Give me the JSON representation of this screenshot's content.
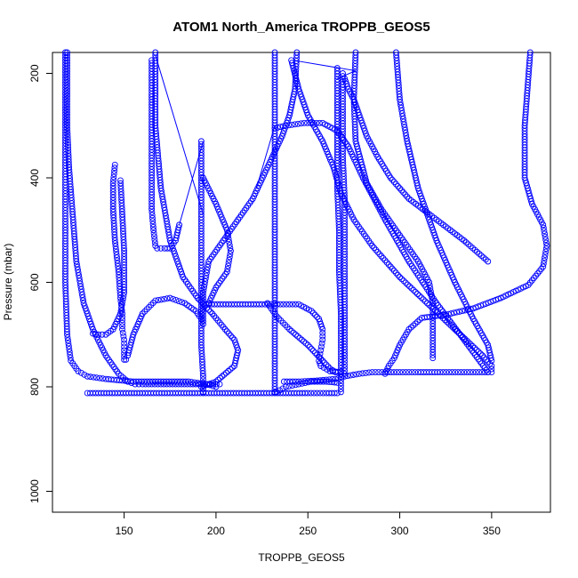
{
  "chart_data": {
    "type": "scatter",
    "title": "ATOM1 North_America TROPPB_GEOS5",
    "xlabel": "TROPPB_GEOS5",
    "ylabel": "Pressure (mbar)",
    "xlim": [
      111,
      382
    ],
    "ylim": [
      1040,
      160
    ],
    "y_reversed": true,
    "x_ticks": [
      150,
      200,
      250,
      300,
      350
    ],
    "y_ticks": [
      200,
      400,
      600,
      800,
      1000
    ],
    "grid": false,
    "legend": "none",
    "marker": "open-circle",
    "color": "#0000ff",
    "series": [
      {
        "x": [
          119,
          119,
          120,
          122,
          124,
          128,
          133,
          140,
          147,
          152,
          156,
          160,
          165,
          170,
          178,
          186,
          195,
          202
        ],
        "y": [
          160,
          300,
          380,
          470,
          560,
          640,
          690,
          740,
          775,
          790,
          795,
          795,
          795,
          795,
          795,
          795,
          795,
          795
        ]
      },
      {
        "x": [
          118,
          118,
          118,
          118,
          118,
          118,
          119,
          121,
          125,
          130,
          140,
          155,
          170,
          185,
          195,
          200
        ],
        "y": [
          160,
          250,
          350,
          430,
          500,
          600,
          700,
          750,
          770,
          780,
          785,
          790,
          790,
          790,
          795,
          800
        ]
      },
      {
        "x": [
          145,
          144,
          144,
          145,
          147,
          148,
          149,
          149,
          150,
          150,
          150
        ],
        "y": [
          375,
          410,
          460,
          520,
          580,
          630,
          660,
          690,
          710,
          730,
          748
        ]
      },
      {
        "x": [
          148,
          149,
          150,
          150,
          148,
          144,
          140,
          136,
          133
        ],
        "y": [
          405,
          470,
          540,
          620,
          660,
          690,
          700,
          700,
          698
        ]
      },
      {
        "x": [
          151,
          152,
          155,
          160,
          167,
          175,
          183,
          189,
          192
        ],
        "y": [
          748,
          740,
          700,
          660,
          635,
          630,
          640,
          655,
          670
        ]
      },
      {
        "x": [
          192,
          192,
          192,
          192,
          192,
          192,
          192,
          193,
          193
        ],
        "y": [
          330,
          400,
          470,
          540,
          600,
          660,
          720,
          780,
          810
        ]
      },
      {
        "x": [
          167,
          167,
          170,
          175,
          182,
          190,
          198,
          205,
          210,
          212,
          210,
          200,
          192
        ],
        "y": [
          160,
          300,
          420,
          520,
          590,
          630,
          660,
          690,
          710,
          730,
          760,
          790,
          800
        ]
      },
      {
        "x": [
          165,
          165,
          165,
          165,
          165,
          166,
          167,
          168,
          170,
          172,
          175,
          178,
          180
        ],
        "y": [
          175,
          250,
          330,
          400,
          460,
          500,
          530,
          535,
          535,
          535,
          535,
          520,
          490
        ]
      },
      {
        "x": [
          244,
          243,
          240,
          236,
          232,
          228,
          224,
          220,
          212,
          204,
          196,
          193,
          193
        ],
        "y": [
          160,
          230,
          280,
          320,
          350,
          380,
          410,
          440,
          480,
          520,
          560,
          620,
          680
        ]
      },
      {
        "x": [
          276,
          275,
          276,
          282,
          290,
          300,
          310,
          316,
          318,
          318,
          318
        ],
        "y": [
          160,
          250,
          330,
          410,
          460,
          510,
          560,
          600,
          640,
          690,
          745
        ]
      },
      {
        "x": [
          193,
          210,
          225,
          235,
          245,
          252,
          256,
          258,
          258,
          257,
          256,
          257,
          262,
          268
        ],
        "y": [
          642,
          642,
          642,
          642,
          642,
          655,
          670,
          690,
          710,
          730,
          750,
          760,
          770,
          772
        ]
      },
      {
        "x": [
          298,
          300,
          304,
          310,
          320,
          330,
          340,
          348,
          350
        ],
        "y": [
          160,
          250,
          330,
          420,
          520,
          600,
          670,
          720,
          750
        ]
      },
      {
        "x": [
          371,
          368,
          368,
          372,
          378,
          380,
          378,
          370,
          355,
          340,
          325,
          312,
          305,
          300,
          297,
          294,
          292
        ],
        "y": [
          160,
          300,
          400,
          450,
          490,
          530,
          570,
          605,
          630,
          650,
          662,
          668,
          690,
          720,
          745,
          760,
          775
        ]
      },
      {
        "x": [
          241,
          245,
          250,
          258,
          264,
          268,
          275,
          285,
          300,
          315,
          330,
          345,
          350,
          350
        ],
        "y": [
          175,
          230,
          280,
          330,
          380,
          430,
          480,
          530,
          590,
          640,
          690,
          740,
          760,
          772
        ]
      },
      {
        "x": [
          232,
          232,
          232,
          232,
          232,
          232,
          232
        ],
        "y": [
          160,
          300,
          420,
          520,
          640,
          740,
          810
        ]
      },
      {
        "x": [
          232,
          238,
          248,
          258,
          266,
          272,
          280,
          292,
          305,
          320,
          335,
          348
        ],
        "y": [
          305,
          300,
          295,
          295,
          310,
          340,
          400,
          480,
          560,
          640,
          710,
          772
        ]
      },
      {
        "x": [
          266,
          266,
          266,
          266,
          267,
          267,
          268,
          268,
          268,
          268
        ],
        "y": [
          190,
          260,
          340,
          420,
          500,
          580,
          660,
          720,
          770,
          810
        ]
      },
      {
        "x": [
          269,
          269,
          269,
          270,
          270,
          270,
          270,
          270,
          270
        ],
        "y": [
          200,
          280,
          360,
          440,
          520,
          600,
          680,
          740,
          775
        ]
      },
      {
        "x": [
          270,
          272,
          275,
          278,
          282,
          288,
          295,
          305,
          320,
          335,
          348
        ],
        "y": [
          210,
          230,
          250,
          280,
          320,
          360,
          400,
          440,
          480,
          520,
          560
        ]
      },
      {
        "x": [
          193,
          200,
          206,
          208,
          206,
          200,
          196
        ],
        "y": [
          400,
          450,
          500,
          540,
          580,
          610,
          640
        ]
      },
      {
        "x": [
          228,
          233,
          240,
          250,
          258,
          262,
          265
        ],
        "y": [
          640,
          665,
          690,
          720,
          750,
          765,
          772
        ]
      },
      {
        "x": [
          237,
          245,
          255,
          265,
          270,
          278,
          285,
          292,
          300,
          310,
          322,
          335,
          348
        ],
        "y": [
          790,
          790,
          788,
          785,
          780,
          775,
          772,
          772,
          772,
          772,
          772,
          772,
          772
        ]
      },
      {
        "x": [
          130,
          145,
          160,
          175,
          190,
          205,
          220,
          235,
          250,
          260,
          266
        ],
        "y": [
          812,
          812,
          812,
          812,
          812,
          812,
          812,
          812,
          812,
          812,
          812
        ]
      },
      {
        "x": [
          233,
          238,
          245,
          252,
          260,
          266
        ],
        "y": [
          810,
          800,
          795,
          790,
          790,
          792
        ]
      }
    ],
    "connecting_lines": [
      {
        "x": [
          167,
          193
        ],
        "y": [
          165,
          470
        ]
      },
      {
        "x": [
          180,
          193
        ],
        "y": [
          490,
          330
        ]
      },
      {
        "x": [
          222,
          232
        ],
        "y": [
          420,
          300
        ]
      },
      {
        "x": [
          242,
          276
        ],
        "y": [
          175,
          195
        ]
      },
      {
        "x": [
          276,
          266
        ],
        "y": [
          195,
          210
        ]
      }
    ]
  }
}
